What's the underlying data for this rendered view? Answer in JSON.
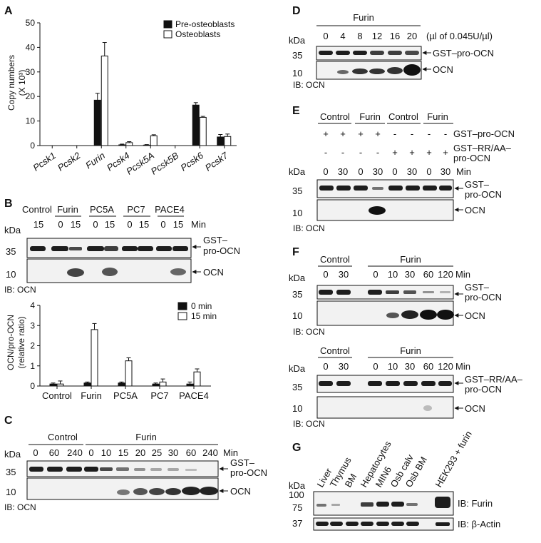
{
  "panels": {
    "A": {
      "label": "A",
      "chart_data": {
        "type": "bar",
        "categories": [
          "Pcsk1",
          "Pcsk2",
          "Furin",
          "Pcsk4",
          "Pcsk5A",
          "Pcsk5B",
          "Pcsk6",
          "Pcsk7"
        ],
        "series": [
          {
            "name": "Pre-osteoblasts",
            "values": [
              0,
              0,
              18.5,
              0.3,
              0.2,
              0,
              16.5,
              3.5
            ],
            "errors": [
              0,
              0,
              2.8,
              0.3,
              0.2,
              0,
              1.0,
              1.0
            ]
          },
          {
            "name": "Osteoblasts",
            "values": [
              0,
              0,
              36.5,
              1.2,
              4.0,
              0,
              11.5,
              3.7
            ],
            "errors": [
              0,
              0,
              5.5,
              0.4,
              0.4,
              0,
              0.4,
              1.0
            ]
          }
        ],
        "ylabel": "Copy numbers",
        "ylabel_unit": "(X 10³)",
        "ylim": [
          0,
          50
        ],
        "yticks": [
          "0",
          "10",
          "20",
          "30",
          "40",
          "50"
        ]
      }
    },
    "B": {
      "label": "B",
      "blot": {
        "groups": [
          "Control",
          "Furin",
          "PC5A",
          "PC7",
          "PACE4"
        ],
        "times": [
          "15",
          "0",
          "15",
          "0",
          "15",
          "0",
          "15",
          "0",
          "15"
        ],
        "time_unit": "Min",
        "kda_header": "kDa",
        "markers": [
          "35",
          "10"
        ],
        "band_labels": [
          "GST–",
          "pro-OCN",
          "OCN"
        ],
        "ib": "IB: OCN"
      },
      "chart_data": {
        "type": "bar",
        "categories": [
          "Control",
          "Furin",
          "PC5A",
          "PC7",
          "PACE4"
        ],
        "series": [
          {
            "name": "0 min",
            "values": [
              0.1,
              0.15,
              0.15,
              0.1,
              0.1
            ],
            "errors": [
              0.05,
              0.05,
              0.05,
              0.05,
              0.1
            ]
          },
          {
            "name": "15 min",
            "values": [
              0.1,
              2.8,
              1.25,
              0.2,
              0.7
            ],
            "errors": [
              0.15,
              0.3,
              0.15,
              0.15,
              0.15
            ]
          }
        ],
        "ylabel": "OCN/pro-OCN",
        "ylabel_sub": "(relative ratio)",
        "ylim": [
          0,
          4
        ],
        "yticks": [
          "0",
          "1",
          "2",
          "3",
          "4"
        ]
      }
    },
    "C": {
      "label": "C",
      "groups": [
        "Control",
        "Furin"
      ],
      "times": [
        "0",
        "60",
        "240",
        "0",
        "10",
        "15",
        "20",
        "25",
        "30",
        "60",
        "240"
      ],
      "time_unit": "Min",
      "kda_header": "kDa",
      "markers": [
        "35",
        "10"
      ],
      "band_labels": [
        "GST–",
        "pro-OCN",
        "OCN"
      ],
      "ib": "IB: OCN"
    },
    "D": {
      "label": "D",
      "group": "Furin",
      "doses": [
        "0",
        "4",
        "8",
        "12",
        "16",
        "20"
      ],
      "dose_unit": "(µl of 0.045U/µl)",
      "kda_header": "kDa",
      "markers": [
        "35",
        "10"
      ],
      "band_labels": [
        "GST–pro-OCN",
        "OCN"
      ],
      "ib": "IB: OCN"
    },
    "E": {
      "label": "E",
      "groups": [
        "Control",
        "Furin",
        "Control",
        "Furin"
      ],
      "row1_label": "GST–pro-OCN",
      "row1_signs": [
        "+",
        "+",
        "+",
        "+",
        "-",
        "-",
        "-",
        "-"
      ],
      "row2_label_1": "GST–RR/AA–",
      "row2_label_2": "pro-OCN",
      "row2_signs": [
        "-",
        "-",
        "-",
        "-",
        "+",
        "+",
        "+",
        "+"
      ],
      "times": [
        "0",
        "30",
        "0",
        "30",
        "0",
        "30",
        "0",
        "30"
      ],
      "time_unit": "Min",
      "kda_header": "kDa",
      "markers": [
        "35",
        "10"
      ],
      "band_labels": [
        "GST–",
        "pro-OCN",
        "OCN"
      ],
      "ib": "IB: OCN"
    },
    "F": {
      "label": "F",
      "top": {
        "groups": [
          "Control",
          "Furin"
        ],
        "times": [
          "0",
          "30",
          "0",
          "10",
          "30",
          "60",
          "120"
        ],
        "time_unit": "Min",
        "kda_header": "kDa",
        "markers": [
          "35",
          "10"
        ],
        "band_labels": [
          "GST–",
          "pro-OCN",
          "OCN"
        ],
        "ib": "IB: OCN"
      },
      "bottom": {
        "groups": [
          "Control",
          "Furin"
        ],
        "times": [
          "0",
          "30",
          "0",
          "10",
          "30",
          "60",
          "120"
        ],
        "time_unit": "Min",
        "kda_header": "kDa",
        "markers": [
          "35",
          "10"
        ],
        "band_labels": [
          "GST–RR/AA–",
          "pro-OCN",
          "OCN"
        ],
        "ib": "IB: OCN"
      }
    },
    "G": {
      "label": "G",
      "samples": [
        "Liver",
        "Thymus",
        "BM",
        "Hepatocytes",
        "MIN6",
        "Osb calv",
        "Osb BM",
        "HEK293 + furin"
      ],
      "kda_header": "kDa",
      "markers": [
        "100",
        "75",
        "37"
      ],
      "ib1": "IB: Furin",
      "ib2": "IB: β-Actin"
    }
  }
}
